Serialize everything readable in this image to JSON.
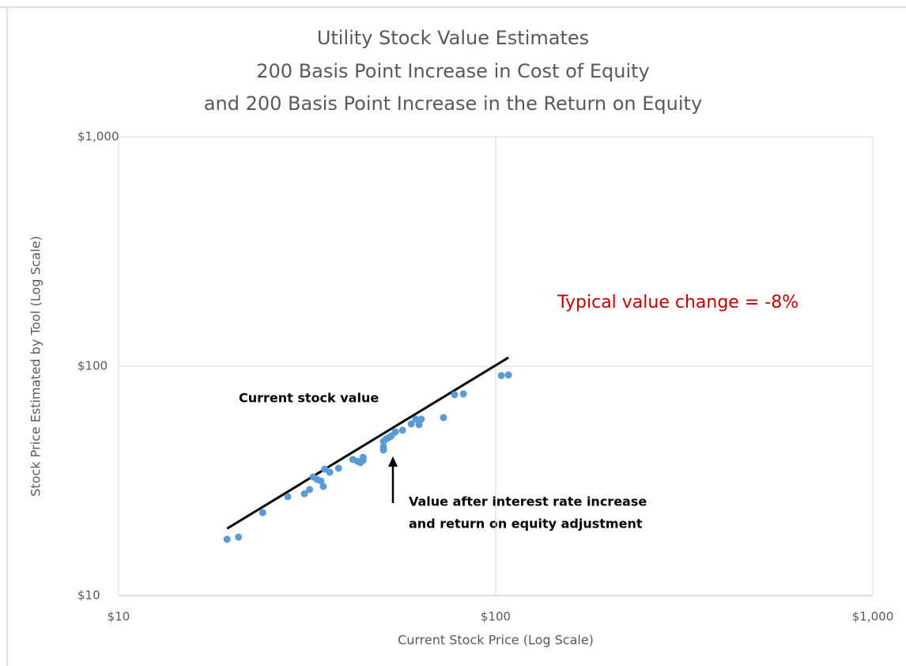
{
  "chart_data": {
    "type": "scatter",
    "title": [
      "Utility Stock Value Estimates",
      "200 Basis Point Increase in Cost of Equity",
      "and 200 Basis Point Increase in the Return on Equity"
    ],
    "xlabel": "Current Stock Price (Log Scale)",
    "ylabel": "Stock Price Estimated by Tool (Log Scale)",
    "log_x": true,
    "log_y": true,
    "grid": true,
    "xlim": [
      10,
      1000
    ],
    "ylim": [
      10,
      1000
    ],
    "xticks": [
      {
        "value": 10,
        "label": "$10"
      },
      {
        "value": 100,
        "label": "$100"
      },
      {
        "value": 1000,
        "label": "$1,000"
      }
    ],
    "yticks": [
      {
        "value": 10,
        "label": "$10"
      },
      {
        "value": 100,
        "label": "$100"
      },
      {
        "value": 1000,
        "label": "$1,000"
      }
    ],
    "color": "#5b9bd5",
    "x": [
      19.4,
      20.8,
      24.1,
      28.1,
      31.1,
      32.1,
      32.8,
      33.6,
      34.4,
      34.9,
      35.2,
      36.3,
      38.3,
      41.8,
      43.0,
      43.8,
      44.5,
      44.5,
      50.4,
      50.4,
      50.4,
      51.2,
      52.1,
      52.9,
      54.2,
      56.6,
      59.7,
      61.4,
      62.6,
      63.5,
      72.7,
      77.8,
      82.1,
      103.5,
      108.1
    ],
    "values": [
      17.6,
      18.0,
      23.0,
      27.0,
      27.8,
      29.0,
      32.9,
      32.1,
      31.6,
      29.9,
      35.6,
      34.5,
      35.9,
      39.2,
      38.5,
      38.0,
      38.9,
      40.1,
      43.1,
      44.5,
      47.0,
      48.2,
      48.9,
      49.7,
      51.7,
      52.6,
      56.0,
      58.8,
      55.6,
      58.8,
      59.7,
      75.2,
      75.7,
      91.0,
      91.6
    ],
    "trendline": {
      "color": "#000000",
      "x": [
        19.4,
        108.1
      ],
      "values": [
        19.6,
        109.1
      ]
    },
    "annotations": [
      "Typical value change = -8%",
      "Current stock value",
      "Value after interest rate increase",
      "and return on equity adjustment"
    ]
  }
}
